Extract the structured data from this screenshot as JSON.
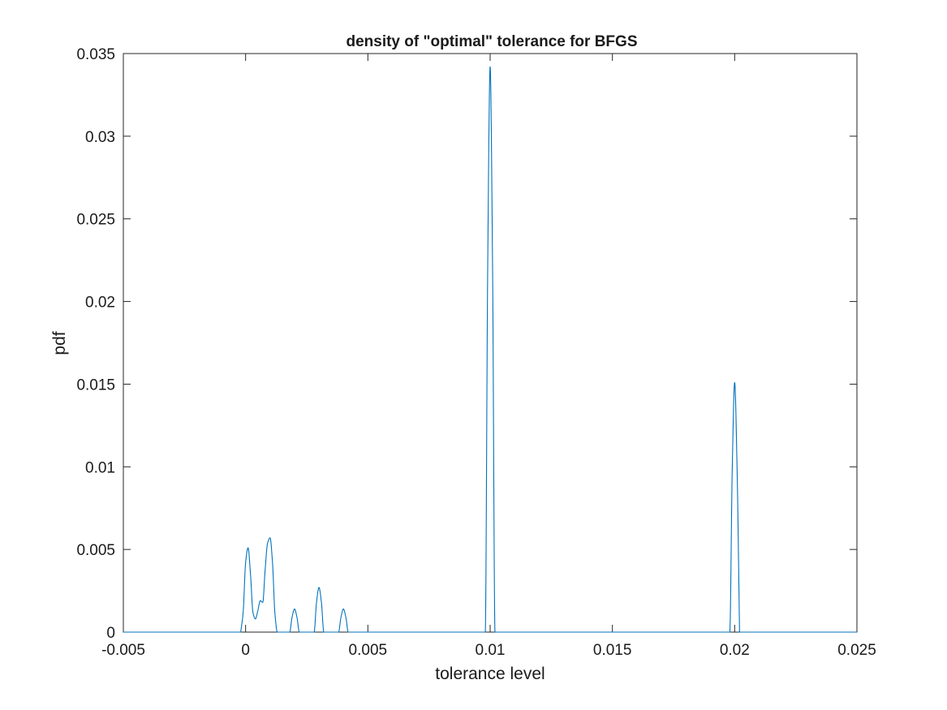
{
  "chart_data": {
    "type": "line",
    "title": "density of \"optimal\" tolerance for BFGS",
    "xlabel": "tolerance level",
    "ylabel": "pdf",
    "xlim": [
      -0.005,
      0.025
    ],
    "ylim": [
      0,
      0.035
    ],
    "x_ticks": [
      -0.005,
      0,
      0.005,
      0.01,
      0.015,
      0.02,
      0.025
    ],
    "x_tick_labels": [
      "-0.005",
      "0",
      "0.005",
      "0.01",
      "0.015",
      "0.02",
      "0.025"
    ],
    "y_ticks": [
      0,
      0.005,
      0.01,
      0.015,
      0.02,
      0.025,
      0.03,
      0.035
    ],
    "y_tick_labels": [
      "0",
      "0.005",
      "0.01",
      "0.015",
      "0.02",
      "0.025",
      "0.03",
      "0.035"
    ],
    "grid": false,
    "line_color": "#0072BD",
    "series": [
      {
        "x": [
          -0.0002,
          -0.0001,
          0.0,
          0.0001,
          0.0002,
          0.0003,
          0.0004,
          0.0005,
          0.0006,
          0.0007,
          0.0008,
          0.0009,
          0.001,
          0.0011,
          0.0012,
          0.0013,
          0.0018,
          0.0019,
          0.002,
          0.0021,
          0.0022,
          0.0028,
          0.0029,
          0.003,
          0.0031,
          0.0032,
          0.0038,
          0.0039,
          0.004,
          0.0041,
          0.0042,
          0.005,
          0.0098,
          0.0099,
          0.01,
          0.0101,
          0.0102,
          0.015,
          0.0198,
          0.0199,
          0.02,
          0.0201,
          0.0202
        ],
        "y": [
          0,
          0.0012,
          0.0042,
          0.0051,
          0.0035,
          0.0012,
          0.0008,
          0.0013,
          0.0019,
          0.0018,
          0.0038,
          0.0054,
          0.0057,
          0.0042,
          0.0011,
          0,
          0,
          0.0009,
          0.0014,
          0.0009,
          0,
          0,
          0.0018,
          0.0027,
          0.0018,
          0,
          0,
          0.0009,
          0.0014,
          0.0009,
          0,
          0,
          0,
          0.022,
          0.0342,
          0.022,
          0,
          0,
          0,
          0.0098,
          0.0151,
          0.0098,
          0
        ]
      }
    ]
  }
}
